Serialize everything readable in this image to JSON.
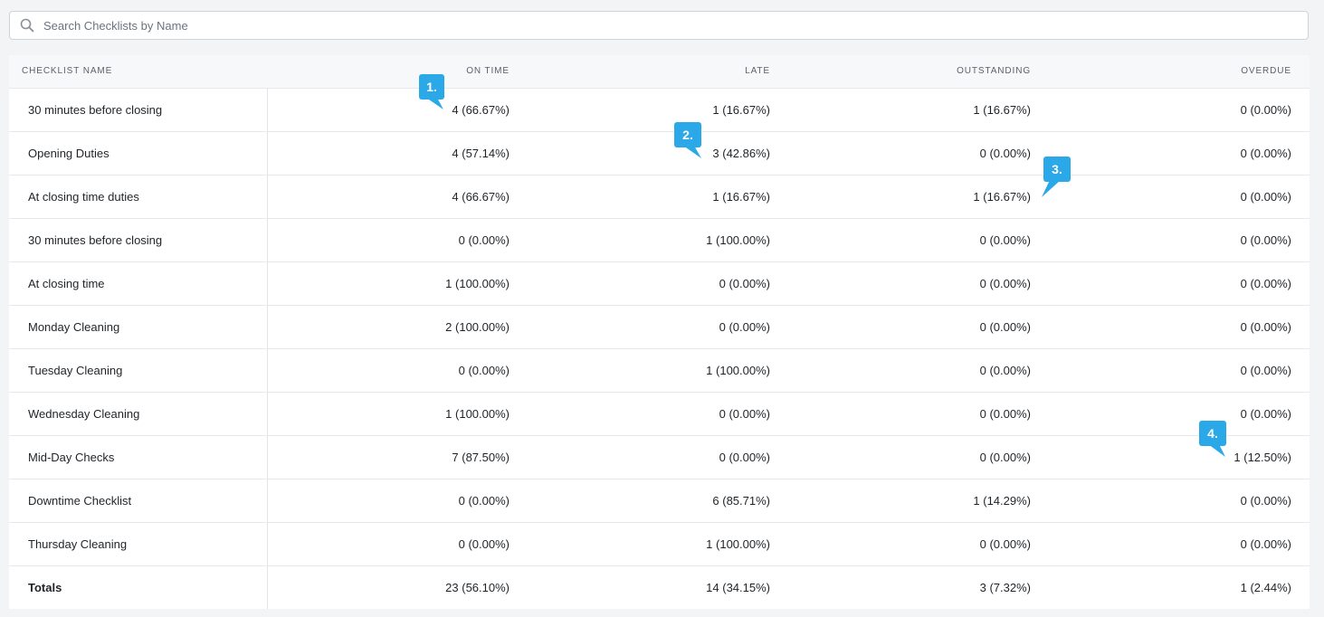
{
  "search": {
    "placeholder": "Search Checklists by Name",
    "value": ""
  },
  "table": {
    "headers": {
      "name": "CHECKLIST NAME",
      "on_time": "ON TIME",
      "late": "LATE",
      "outstanding": "OUTSTANDING",
      "overdue": "OVERDUE"
    },
    "rows": [
      {
        "name": "30 minutes before closing",
        "on_time": "4 (66.67%)",
        "late": "1 (16.67%)",
        "outstanding": "1 (16.67%)",
        "overdue": "0 (0.00%)"
      },
      {
        "name": "Opening Duties",
        "on_time": "4 (57.14%)",
        "late": "3 (42.86%)",
        "outstanding": "0 (0.00%)",
        "overdue": "0 (0.00%)"
      },
      {
        "name": "At closing time duties",
        "on_time": "4 (66.67%)",
        "late": "1 (16.67%)",
        "outstanding": "1 (16.67%)",
        "overdue": "0 (0.00%)"
      },
      {
        "name": "30 minutes before closing",
        "on_time": "0 (0.00%)",
        "late": "1 (100.00%)",
        "outstanding": "0 (0.00%)",
        "overdue": "0 (0.00%)"
      },
      {
        "name": "At closing time",
        "on_time": "1 (100.00%)",
        "late": "0 (0.00%)",
        "outstanding": "0 (0.00%)",
        "overdue": "0 (0.00%)"
      },
      {
        "name": "Monday Cleaning",
        "on_time": "2 (100.00%)",
        "late": "0 (0.00%)",
        "outstanding": "0 (0.00%)",
        "overdue": "0 (0.00%)"
      },
      {
        "name": "Tuesday Cleaning",
        "on_time": "0 (0.00%)",
        "late": "1 (100.00%)",
        "outstanding": "0 (0.00%)",
        "overdue": "0 (0.00%)"
      },
      {
        "name": "Wednesday Cleaning",
        "on_time": "1 (100.00%)",
        "late": "0 (0.00%)",
        "outstanding": "0 (0.00%)",
        "overdue": "0 (0.00%)"
      },
      {
        "name": "Mid-Day Checks",
        "on_time": "7 (87.50%)",
        "late": "0 (0.00%)",
        "outstanding": "0 (0.00%)",
        "overdue": "1 (12.50%)"
      },
      {
        "name": "Downtime Checklist",
        "on_time": "0 (0.00%)",
        "late": "6 (85.71%)",
        "outstanding": "1 (14.29%)",
        "overdue": "0 (0.00%)"
      },
      {
        "name": "Thursday Cleaning",
        "on_time": "0 (0.00%)",
        "late": "1 (100.00%)",
        "outstanding": "0 (0.00%)",
        "overdue": "0 (0.00%)"
      }
    ],
    "totals": {
      "name": "Totals",
      "on_time": "23 (56.10%)",
      "late": "14 (34.15%)",
      "outstanding": "3 (7.32%)",
      "overdue": "1 (2.44%)"
    }
  },
  "callouts": [
    "1.",
    "2.",
    "3.",
    "4."
  ],
  "colors": {
    "callout": "#2aa8e8",
    "header_bg": "#f7f8fa",
    "page_bg": "#f3f4f6"
  }
}
